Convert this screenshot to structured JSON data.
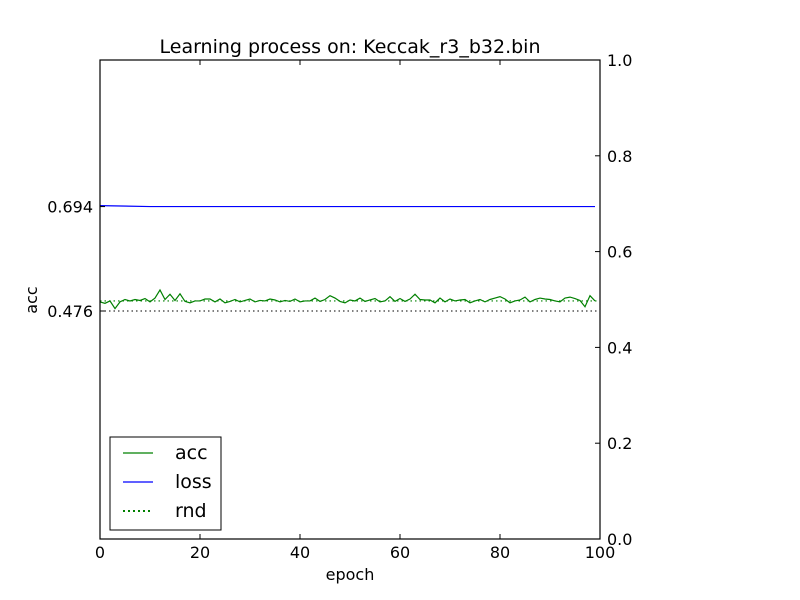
{
  "chart_data": {
    "type": "line",
    "title": "Learning process on: Keccak_r3_b32.bin",
    "xlabel": "epoch",
    "ylabel": "acc",
    "xlim": [
      0,
      100
    ],
    "ylim": [
      0,
      1
    ],
    "x_ticks": [
      "0",
      "20",
      "40",
      "60",
      "80",
      "100"
    ],
    "left_ticks": [
      "0.694",
      "0.476"
    ],
    "left_tick_values": [
      0.694,
      0.476
    ],
    "right_ticks": [
      "0.0",
      "0.2",
      "0.4",
      "0.6",
      "0.8",
      "1.0"
    ],
    "right_tick_values": [
      0,
      0.2,
      0.4,
      0.6,
      0.8,
      1.0
    ],
    "grid": false,
    "legend_position": "lower-left",
    "series": [
      {
        "name": "acc",
        "color": "#008000",
        "style": "solid",
        "x": [
          0,
          1,
          2,
          3,
          4,
          5,
          6,
          7,
          8,
          9,
          10,
          11,
          12,
          13,
          14,
          15,
          16,
          17,
          18,
          19,
          20,
          21,
          22,
          23,
          24,
          25,
          26,
          27,
          28,
          29,
          30,
          31,
          32,
          33,
          34,
          35,
          36,
          37,
          38,
          39,
          40,
          41,
          42,
          43,
          44,
          45,
          46,
          47,
          48,
          49,
          50,
          51,
          52,
          53,
          54,
          55,
          56,
          57,
          58,
          59,
          60,
          61,
          62,
          63,
          64,
          65,
          66,
          67,
          68,
          69,
          70,
          71,
          72,
          73,
          74,
          75,
          76,
          77,
          78,
          79,
          80,
          81,
          82,
          83,
          84,
          85,
          86,
          87,
          88,
          89,
          90,
          91,
          92,
          93,
          94,
          95,
          96,
          97,
          98,
          99
        ],
        "values": [
          0.495,
          0.492,
          0.497,
          0.481,
          0.495,
          0.5,
          0.497,
          0.5,
          0.498,
          0.502,
          0.495,
          0.503,
          0.52,
          0.5,
          0.511,
          0.498,
          0.512,
          0.496,
          0.493,
          0.497,
          0.497,
          0.501,
          0.501,
          0.495,
          0.501,
          0.493,
          0.496,
          0.5,
          0.495,
          0.498,
          0.501,
          0.495,
          0.498,
          0.497,
          0.501,
          0.499,
          0.495,
          0.498,
          0.496,
          0.501,
          0.495,
          0.497,
          0.497,
          0.503,
          0.496,
          0.5,
          0.508,
          0.503,
          0.496,
          0.493,
          0.499,
          0.497,
          0.503,
          0.496,
          0.499,
          0.502,
          0.495,
          0.497,
          0.506,
          0.496,
          0.502,
          0.496,
          0.501,
          0.511,
          0.5,
          0.499,
          0.499,
          0.493,
          0.503,
          0.495,
          0.501,
          0.497,
          0.499,
          0.5,
          0.493,
          0.497,
          0.5,
          0.495,
          0.5,
          0.503,
          0.506,
          0.501,
          0.493,
          0.497,
          0.499,
          0.505,
          0.495,
          0.5,
          0.503,
          0.501,
          0.5,
          0.497,
          0.495,
          0.503,
          0.505,
          0.502,
          0.498,
          0.485,
          0.508,
          0.497
        ]
      },
      {
        "name": "loss",
        "color": "#0000ff",
        "style": "solid",
        "x": [
          0,
          10,
          20,
          30,
          40,
          50,
          60,
          70,
          80,
          90,
          99
        ],
        "values": [
          0.696,
          0.694,
          0.694,
          0.694,
          0.694,
          0.694,
          0.694,
          0.694,
          0.694,
          0.694,
          0.694
        ]
      },
      {
        "name": "rnd",
        "color": "#008000",
        "style": "dotted",
        "x": [
          0,
          100
        ],
        "values": [
          0.497,
          0.497
        ]
      }
    ],
    "reference_line": {
      "y": 0.476,
      "color": "#000000",
      "style": "dotted"
    }
  }
}
